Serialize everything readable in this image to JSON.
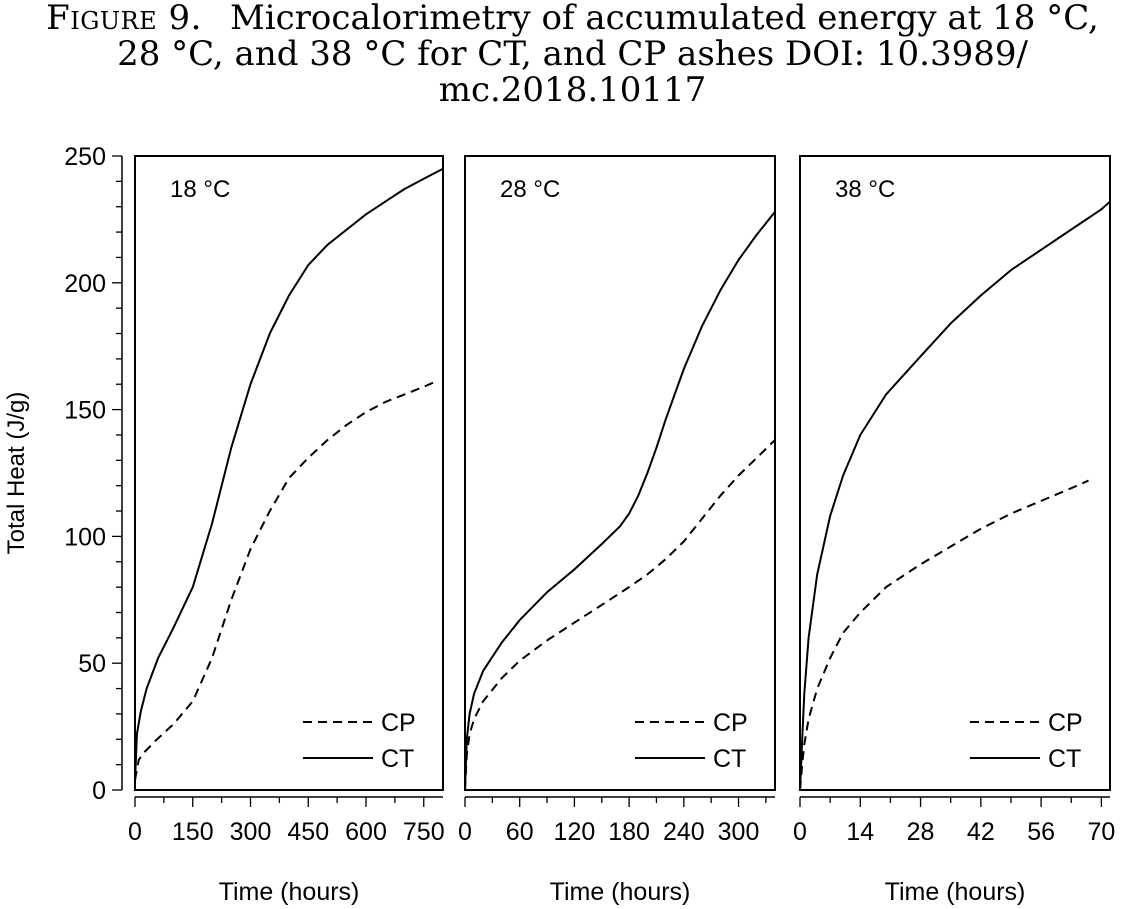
{
  "figure": {
    "label": "Figure 9.",
    "caption": "Microcalorimetry of accumulated energy at 18 °C, 28 °C, and 38 °C for CT, and CP ashes DOI: 10.3989/ mc.2018.10117"
  },
  "chart_data": [
    {
      "type": "line",
      "panel_label": "18 °C",
      "xlabel": "Time (hours)",
      "ylabel": "Total Heat (J/g)",
      "xlim": [
        0,
        800
      ],
      "ylim": [
        0,
        250
      ],
      "xticks": [
        0,
        150,
        300,
        450,
        600,
        750
      ],
      "yticks": [
        0,
        50,
        100,
        150,
        200,
        250
      ],
      "legend_position": "bottom-right",
      "series": [
        {
          "name": "CP",
          "style": "dashed",
          "x": [
            0,
            10,
            25,
            50,
            100,
            150,
            200,
            250,
            300,
            350,
            400,
            450,
            500,
            550,
            600,
            650,
            700,
            750,
            780
          ],
          "y": [
            4,
            12,
            15,
            19,
            26,
            35,
            52,
            75,
            95,
            110,
            123,
            131,
            138,
            144,
            149,
            153,
            156,
            159,
            161
          ]
        },
        {
          "name": "CT",
          "style": "solid",
          "x": [
            0,
            5,
            15,
            30,
            60,
            100,
            150,
            200,
            250,
            300,
            350,
            400,
            450,
            500,
            550,
            600,
            650,
            700,
            750,
            800
          ],
          "y": [
            3,
            22,
            31,
            40,
            52,
            64,
            80,
            105,
            135,
            160,
            180,
            195,
            207,
            215,
            221,
            227,
            232,
            237,
            241,
            245
          ]
        }
      ]
    },
    {
      "type": "line",
      "panel_label": "28 °C",
      "xlabel": "Time (hours)",
      "ylabel": "",
      "xlim": [
        0,
        340
      ],
      "ylim": [
        0,
        250
      ],
      "xticks": [
        0,
        60,
        120,
        180,
        240,
        300
      ],
      "legend_position": "bottom-right",
      "series": [
        {
          "name": "CP",
          "style": "dashed",
          "x": [
            0,
            2,
            5,
            10,
            20,
            40,
            60,
            90,
            120,
            150,
            180,
            200,
            220,
            240,
            260,
            280,
            300,
            320,
            340
          ],
          "y": [
            0,
            14,
            22,
            28,
            35,
            44,
            51,
            59,
            66,
            73,
            80,
            85,
            91,
            98,
            107,
            116,
            124,
            131,
            138
          ]
        },
        {
          "name": "CT",
          "style": "solid",
          "x": [
            0,
            2,
            5,
            10,
            20,
            40,
            60,
            90,
            120,
            150,
            170,
            180,
            190,
            200,
            210,
            220,
            240,
            260,
            280,
            300,
            320,
            340
          ],
          "y": [
            0,
            20,
            30,
            38,
            47,
            58,
            67,
            78,
            87,
            97,
            104,
            109,
            116,
            125,
            135,
            146,
            166,
            183,
            197,
            209,
            219,
            228
          ]
        }
      ]
    },
    {
      "type": "line",
      "panel_label": "38 °C",
      "xlabel": "Time (hours)",
      "ylabel": "",
      "xlim": [
        0,
        72
      ],
      "ylim": [
        0,
        250
      ],
      "xticks": [
        0,
        14,
        28,
        42,
        56,
        70
      ],
      "legend_position": "bottom-right",
      "series": [
        {
          "name": "CP",
          "style": "dashed",
          "x": [
            0,
            0.5,
            1,
            2,
            4,
            7,
            10,
            14,
            20,
            28,
            35,
            42,
            49,
            56,
            63,
            67
          ],
          "y": [
            0,
            10,
            18,
            28,
            40,
            52,
            62,
            70,
            80,
            89,
            96,
            103,
            109,
            114,
            119,
            122
          ]
        },
        {
          "name": "CT",
          "style": "solid",
          "x": [
            0,
            0.5,
            1,
            2,
            4,
            7,
            10,
            14,
            20,
            28,
            35,
            42,
            49,
            56,
            63,
            70,
            72
          ],
          "y": [
            0,
            20,
            38,
            60,
            85,
            108,
            124,
            140,
            156,
            171,
            184,
            195,
            205,
            213,
            221,
            229,
            232
          ]
        }
      ]
    }
  ]
}
